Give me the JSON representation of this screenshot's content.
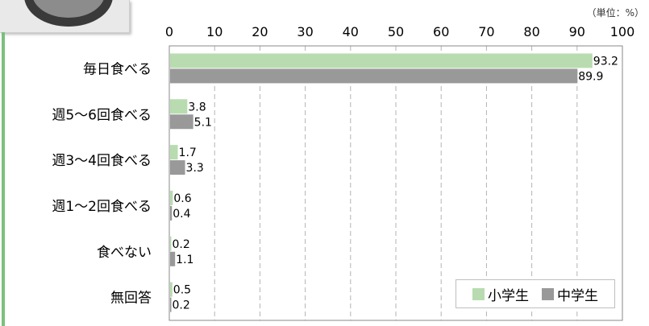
{
  "unit_label": "（単位：%）",
  "chart_data": {
    "type": "bar",
    "orientation": "horizontal",
    "title": "",
    "xlabel": "",
    "ylabel": "",
    "xlim": [
      0,
      100
    ],
    "xticks": [
      0,
      10,
      20,
      30,
      40,
      50,
      60,
      70,
      80,
      90,
      100
    ],
    "grid": true,
    "legend_position": "bottom-right",
    "categories": [
      "毎日食べる",
      "週5～6回食べる",
      "週3～4回食べる",
      "週1～2回食べる",
      "食べない",
      "無回答"
    ],
    "series": [
      {
        "name": "小学生",
        "color": "#b8dcb0",
        "values": [
          93.2,
          3.8,
          1.7,
          0.6,
          0.2,
          0.5
        ]
      },
      {
        "name": "中学生",
        "color": "#999999",
        "values": [
          89.9,
          5.1,
          3.3,
          0.4,
          1.1,
          0.2
        ]
      }
    ]
  }
}
